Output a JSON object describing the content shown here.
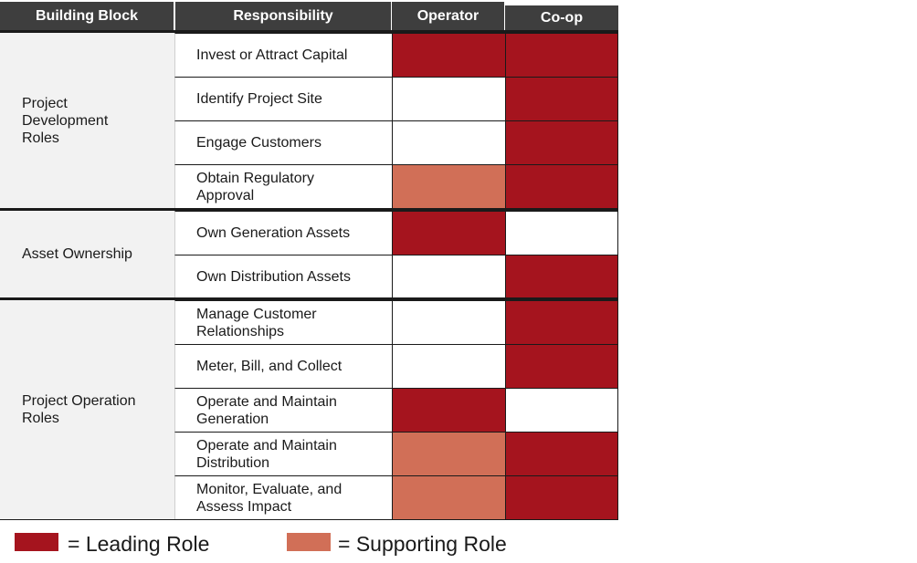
{
  "colors": {
    "leading": "#a5141e",
    "supporting": "#d16f57",
    "none": "#ffffff",
    "header_bg": "#3e3e3e"
  },
  "headers": {
    "building_block": "Building Block",
    "responsibility": "Responsibility",
    "operator": "Operator",
    "coop": "Co-op"
  },
  "groups": [
    {
      "label": "Project Development Roles"
    },
    {
      "label": "Asset Ownership"
    },
    {
      "label": "Project Operation Roles"
    }
  ],
  "rows": [
    {
      "responsibility": "Invest or Attract Capital",
      "operator": "leading",
      "coop": "leading"
    },
    {
      "responsibility": "Identify Project Site",
      "operator": "none",
      "coop": "leading"
    },
    {
      "responsibility": "Engage Customers",
      "operator": "none",
      "coop": "leading"
    },
    {
      "responsibility": "Obtain Regulatory Approval",
      "operator": "supporting",
      "coop": "leading"
    },
    {
      "responsibility": "Own Generation Assets",
      "operator": "leading",
      "coop": "none"
    },
    {
      "responsibility": "Own Distribution Assets",
      "operator": "none",
      "coop": "leading"
    },
    {
      "responsibility": "Manage Customer Relationships",
      "operator": "none",
      "coop": "leading"
    },
    {
      "responsibility": "Meter, Bill, and Collect",
      "operator": "none",
      "coop": "leading"
    },
    {
      "responsibility": "Operate and Maintain Generation",
      "operator": "leading",
      "coop": "none"
    },
    {
      "responsibility": "Operate and Maintain Distribution",
      "operator": "supporting",
      "coop": "leading"
    },
    {
      "responsibility": "Monitor, Evaluate, and Assess Impact",
      "operator": "supporting",
      "coop": "leading"
    }
  ],
  "legend": {
    "leading_label": "= Leading Role",
    "supporting_label": "= Supporting Role"
  }
}
